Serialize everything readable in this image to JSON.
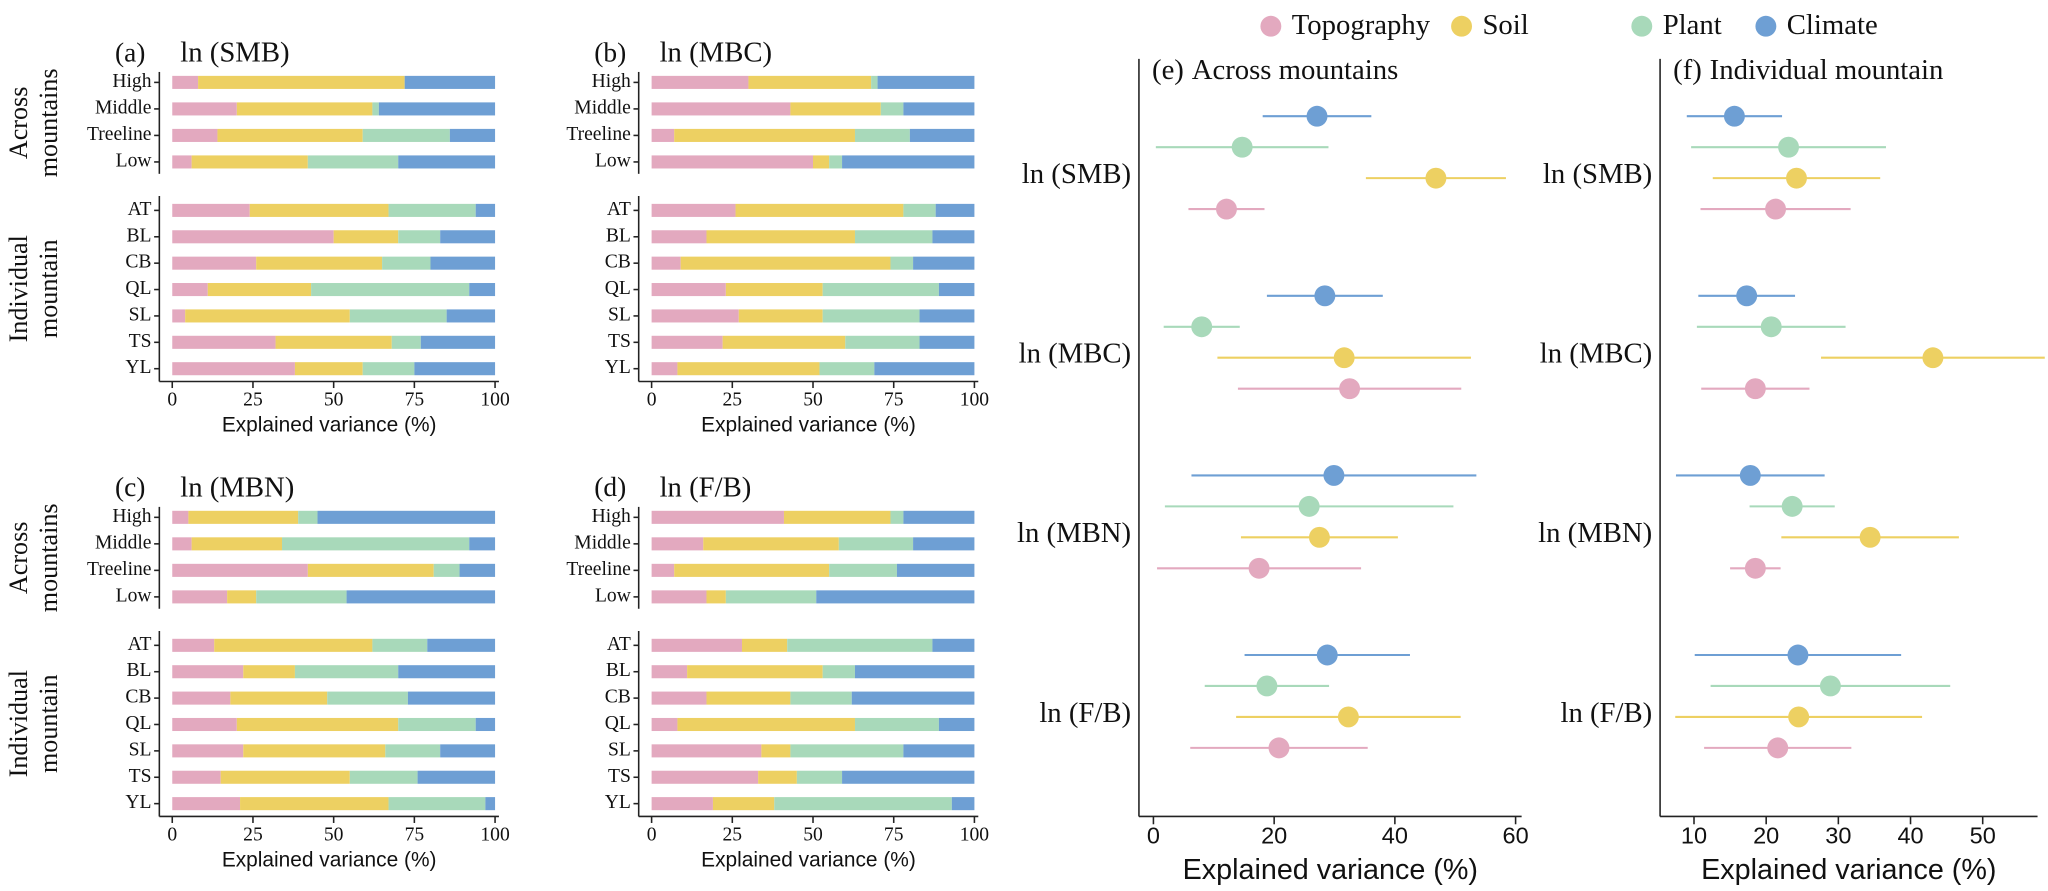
{
  "chart_data": [
    {
      "type": "stacked_bar",
      "label": "(a)",
      "title": "ln (SMB)",
      "group_labels": [
        [
          "Across",
          "mountains"
        ],
        [
          "Individual",
          "mountain"
        ]
      ],
      "categories": [
        "High",
        "Middle",
        "Treeline",
        "Low",
        "AT",
        "BL",
        "CB",
        "QL",
        "SL",
        "TS",
        "YL"
      ],
      "xlabel": "Explained variance (%)",
      "xlim": [
        -4,
        101.2
      ],
      "xticks": [
        0,
        25,
        50,
        75,
        100
      ],
      "series": [
        {
          "name": "Topography",
          "color": "#e3a9bf",
          "values": [
            8,
            20,
            14,
            6,
            24,
            50,
            26,
            11,
            4,
            32,
            38
          ]
        },
        {
          "name": "Soil",
          "color": "#edd062",
          "values": [
            64,
            42,
            45,
            36,
            43,
            20,
            39,
            32,
            51,
            36,
            21
          ]
        },
        {
          "name": "Plant",
          "color": "#a8d9ba",
          "values": [
            0,
            2,
            27,
            28,
            27,
            13,
            15,
            49,
            30,
            9,
            16
          ]
        },
        {
          "name": "Climate",
          "color": "#6e9fd4",
          "values": [
            28,
            36,
            14,
            30,
            6,
            17,
            20,
            8,
            15,
            23,
            25
          ]
        }
      ]
    },
    {
      "type": "stacked_bar",
      "label": "(b)",
      "title": "ln (MBC)",
      "categories": [
        "High",
        "Middle",
        "Treeline",
        "Low",
        "AT",
        "BL",
        "CB",
        "QL",
        "SL",
        "TS",
        "YL"
      ],
      "xlabel": "Explained variance (%)",
      "xlim": [
        -4,
        101.2
      ],
      "xticks": [
        0,
        25,
        50,
        75,
        100
      ],
      "series": [
        {
          "name": "Topography",
          "color": "#e3a9bf",
          "values": [
            30,
            43,
            7,
            50,
            26,
            17,
            9,
            23,
            27,
            22,
            8
          ]
        },
        {
          "name": "Soil",
          "color": "#edd062",
          "values": [
            38,
            28,
            56,
            5,
            52,
            46,
            65,
            30,
            26,
            38,
            44
          ]
        },
        {
          "name": "Plant",
          "color": "#a8d9ba",
          "values": [
            2,
            7,
            17,
            4,
            10,
            24,
            7,
            36,
            30,
            23,
            17
          ]
        },
        {
          "name": "Climate",
          "color": "#6e9fd4",
          "values": [
            30,
            22,
            20,
            41,
            12,
            13,
            19,
            11,
            17,
            17,
            31
          ]
        }
      ]
    },
    {
      "type": "stacked_bar",
      "label": "(c)",
      "title": "ln (MBN)",
      "group_labels": [
        [
          "Across",
          "mountains"
        ],
        [
          "Individual",
          "mountain"
        ]
      ],
      "categories": [
        "High",
        "Middle",
        "Treeline",
        "Low",
        "AT",
        "BL",
        "CB",
        "QL",
        "SL",
        "TS",
        "YL"
      ],
      "xlabel": "Explained variance (%)",
      "xlim": [
        -4,
        101.2
      ],
      "xticks": [
        0,
        25,
        50,
        75,
        100
      ],
      "series": [
        {
          "name": "Topography",
          "color": "#e3a9bf",
          "values": [
            5,
            6,
            42,
            17,
            13,
            22,
            18,
            20,
            22,
            15,
            21
          ]
        },
        {
          "name": "Soil",
          "color": "#edd062",
          "values": [
            34,
            28,
            39,
            9,
            49,
            16,
            30,
            50,
            44,
            40,
            46
          ]
        },
        {
          "name": "Plant",
          "color": "#a8d9ba",
          "values": [
            6,
            58,
            8,
            28,
            17,
            32,
            25,
            24,
            17,
            21,
            30
          ]
        },
        {
          "name": "Climate",
          "color": "#6e9fd4",
          "values": [
            55,
            8,
            11,
            46,
            21,
            30,
            27,
            6,
            17,
            24,
            3
          ]
        }
      ]
    },
    {
      "type": "stacked_bar",
      "label": "(d)",
      "title": "ln (F/B)",
      "categories": [
        "High",
        "Middle",
        "Treeline",
        "Low",
        "AT",
        "BL",
        "CB",
        "QL",
        "SL",
        "TS",
        "YL"
      ],
      "xlabel": "Explained variance (%)",
      "xlim": [
        -4,
        101.2
      ],
      "xticks": [
        0,
        25,
        50,
        75,
        100
      ],
      "series": [
        {
          "name": "Topography",
          "color": "#e3a9bf",
          "values": [
            41,
            16,
            7,
            17,
            28,
            11,
            17,
            8,
            34,
            33,
            19
          ]
        },
        {
          "name": "Soil",
          "color": "#edd062",
          "values": [
            33,
            42,
            48,
            6,
            14,
            42,
            26,
            55,
            9,
            12,
            19
          ]
        },
        {
          "name": "Plant",
          "color": "#a8d9ba",
          "values": [
            4,
            23,
            21,
            28,
            45,
            10,
            19,
            26,
            35,
            14,
            55
          ]
        },
        {
          "name": "Climate",
          "color": "#6e9fd4",
          "values": [
            22,
            19,
            24,
            49,
            13,
            37,
            38,
            11,
            22,
            41,
            7
          ]
        }
      ]
    },
    {
      "type": "dot",
      "label": "(e)",
      "title": "Across mountains",
      "categories": [
        "ln (SMB)",
        "ln (MBC)",
        "ln (MBN)",
        "ln (F/B)"
      ],
      "xlabel": "Explained variance (%)",
      "xlim": [
        -2.4,
        61
      ],
      "xticks": [
        0,
        20,
        40,
        60
      ],
      "series": [
        {
          "name": "Topography",
          "color": "#e3a9bf",
          "values": [
            12.1,
            32.5,
            17.5,
            20.8
          ],
          "errors": [
            6.3,
            18.5,
            16.9,
            14.7
          ]
        },
        {
          "name": "Soil",
          "color": "#edd062",
          "values": [
            46.8,
            31.6,
            27.5,
            32.3
          ],
          "errors": [
            11.6,
            21,
            13,
            18.6
          ]
        },
        {
          "name": "Plant",
          "color": "#a8d9ba",
          "values": [
            14.7,
            8,
            25.8,
            18.8
          ],
          "errors": [
            14.3,
            6.3,
            23.9,
            10.3
          ]
        },
        {
          "name": "Climate",
          "color": "#6e9fd4",
          "values": [
            27.1,
            28.4,
            29.9,
            28.8
          ],
          "errors": [
            9,
            9.6,
            23.6,
            13.7
          ]
        }
      ]
    },
    {
      "type": "dot",
      "label": "(f)",
      "title": "Individual mountain",
      "categories": [
        "ln (SMB)",
        "ln (MBC)",
        "ln (MBN)",
        "ln (F/B)"
      ],
      "xlabel": "Explained variance (%)",
      "xlim": [
        5.3,
        57.6
      ],
      "xticks": [
        10,
        20,
        30,
        40,
        50
      ],
      "series": [
        {
          "name": "Topography",
          "color": "#e3a9bf",
          "values": [
            21.3,
            18.5,
            18.5,
            21.6
          ],
          "errors": [
            10.4,
            7.5,
            3.5,
            10.2
          ]
        },
        {
          "name": "Soil",
          "color": "#edd062",
          "values": [
            24.2,
            43.1,
            34.4,
            24.5
          ],
          "errors": [
            11.6,
            15.5,
            12.3,
            17.1
          ]
        },
        {
          "name": "Plant",
          "color": "#a8d9ba",
          "values": [
            23.1,
            20.7,
            23.6,
            28.9
          ],
          "errors": [
            13.5,
            10.3,
            5.9,
            16.6
          ]
        },
        {
          "name": "Climate",
          "color": "#6e9fd4",
          "values": [
            15.6,
            17.3,
            17.8,
            24.4
          ],
          "errors": [
            6.6,
            6.7,
            10.3,
            14.3
          ]
        }
      ]
    }
  ]
}
